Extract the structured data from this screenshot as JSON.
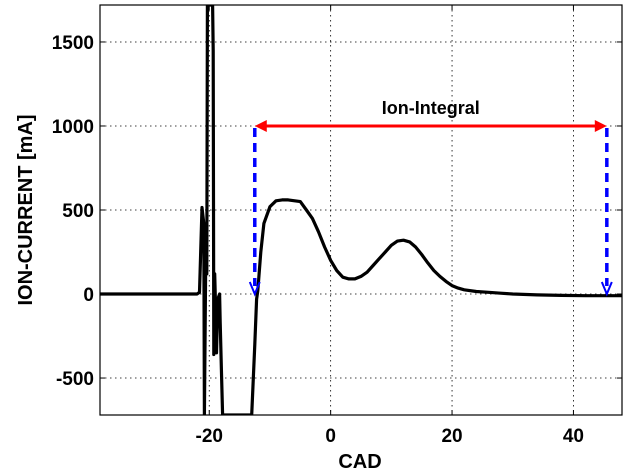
{
  "chart_data": {
    "type": "line",
    "title": "",
    "xlabel": "CAD",
    "ylabel": "ION-CURRENT [mA]",
    "xlim": [
      -38,
      48
    ],
    "ylim": [
      -720,
      1720
    ],
    "xticks": [
      -20,
      0,
      20,
      40
    ],
    "yticks": [
      -500,
      0,
      500,
      1000,
      1500
    ],
    "xtick_labels": [
      "-20",
      "0",
      "20",
      "40"
    ],
    "ytick_labels": [
      "-500",
      "0",
      "500",
      "1000",
      "1500"
    ],
    "grid": true,
    "colors": {
      "series": "#000000",
      "range_arrow": "#ff0000",
      "marker_arrows": "#0000ff"
    },
    "series": [
      {
        "x": [
          -38,
          -30,
          -25,
          -22,
          -21.6,
          -21.2,
          -20.9,
          -20.8,
          -20.6,
          -20.4,
          -20.3,
          -20.15,
          -20.0,
          -19.85,
          -19.7,
          -19.55,
          -19.45,
          -19.35,
          -19.25,
          -19.1,
          -19.0,
          -18.8,
          -18.6,
          -18.5,
          -18.3,
          -18.2,
          -18.0,
          -17.8,
          -17.6,
          -17.55,
          -13,
          -12.5,
          -12.2,
          -12.0,
          -11.5,
          -11.0,
          -10.0,
          -9.0,
          -8.0,
          -7.0,
          -5.0,
          -4.0,
          -3.0,
          -2.0,
          -1.0,
          0.0,
          1.0,
          2.0,
          3.0,
          4.0,
          5.0,
          6.0,
          7.0,
          8.0,
          9.0,
          10.0,
          11.0,
          12.0,
          13.0,
          14.0,
          15.0,
          16.0,
          17.0,
          18.0,
          19.0,
          20.0,
          21.0,
          22.0,
          24.0,
          26.0,
          28.0,
          30.0,
          34.0,
          38.0,
          42.0,
          46.0,
          48.0
        ],
        "y": [
          0,
          0,
          0,
          0,
          10,
          515,
          420,
          -720,
          120,
          120,
          1720,
          1720,
          1720,
          1720,
          1720,
          1720,
          1720,
          1450,
          -360,
          120,
          -15,
          -350,
          -35,
          -20,
          0,
          -170,
          -450,
          -720,
          -720,
          -720,
          -720,
          -300,
          -30,
          20,
          250,
          420,
          520,
          555,
          560,
          560,
          550,
          500,
          450,
          370,
          280,
          200,
          140,
          100,
          90,
          90,
          105,
          130,
          170,
          210,
          250,
          290,
          315,
          320,
          310,
          280,
          235,
          185,
          140,
          105,
          75,
          50,
          35,
          25,
          15,
          10,
          5,
          0,
          -5,
          -8,
          -10,
          -10,
          -10
        ]
      }
    ],
    "annotations": {
      "range_label": "Ion-Integral",
      "range_start_x": -12.5,
      "range_end_x": 45.5,
      "range_y": 1000,
      "marker_top_y": 1000,
      "marker_bottom_y": 0
    }
  }
}
